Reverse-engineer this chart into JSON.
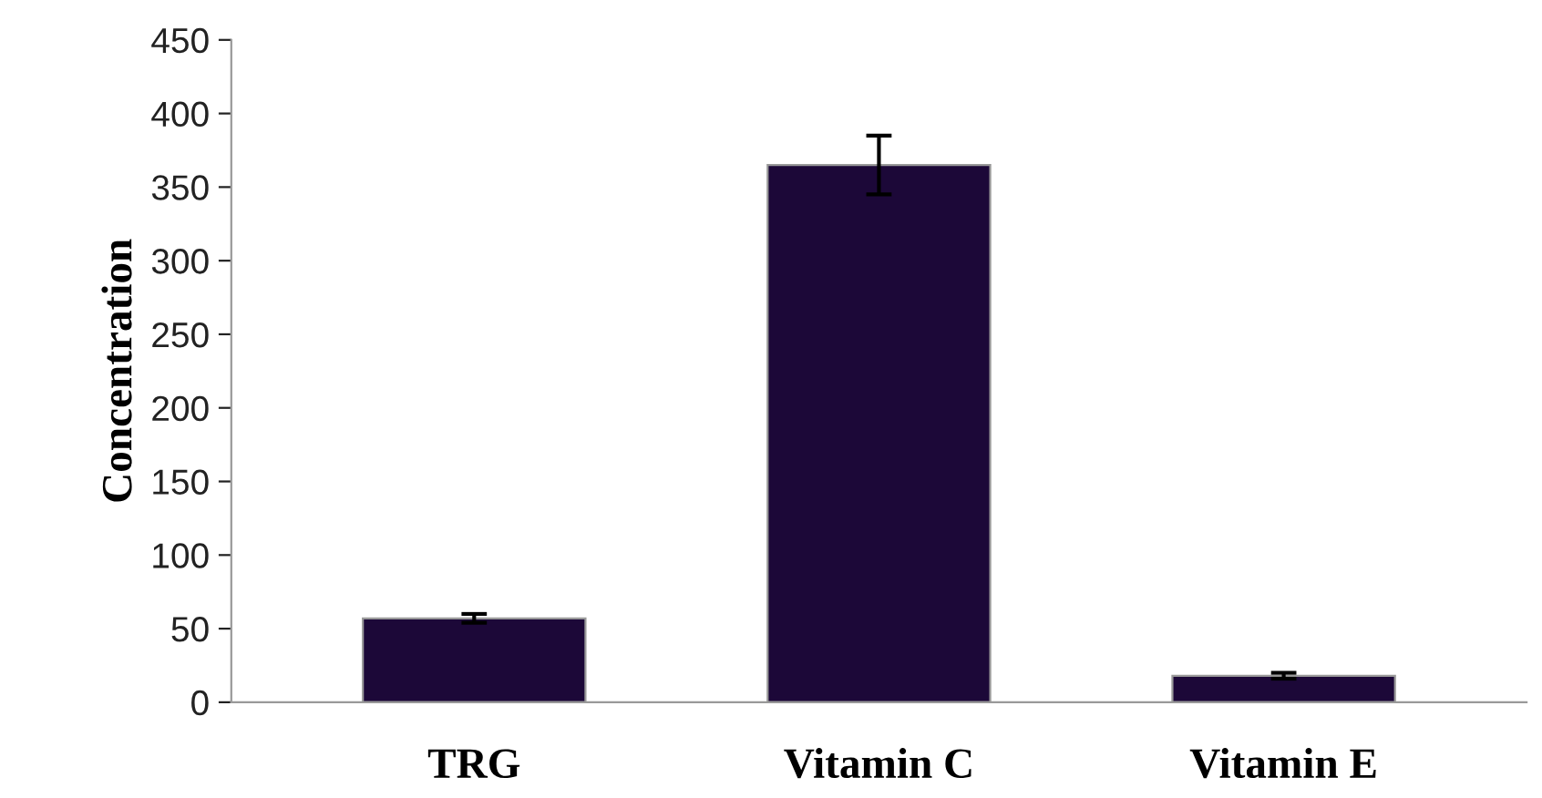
{
  "chart_data": {
    "type": "bar",
    "ylabel": "Concentration",
    "categories": [
      "TRG",
      "Vitamin C",
      "Vitamin E"
    ],
    "values": [
      57,
      365,
      18
    ],
    "errors": [
      3,
      20,
      2
    ],
    "color": "#1c0838",
    "ylim": [
      0,
      450
    ],
    "yticks": [
      0,
      50,
      100,
      150,
      200,
      250,
      300,
      350,
      400,
      450
    ],
    "grid": false
  }
}
